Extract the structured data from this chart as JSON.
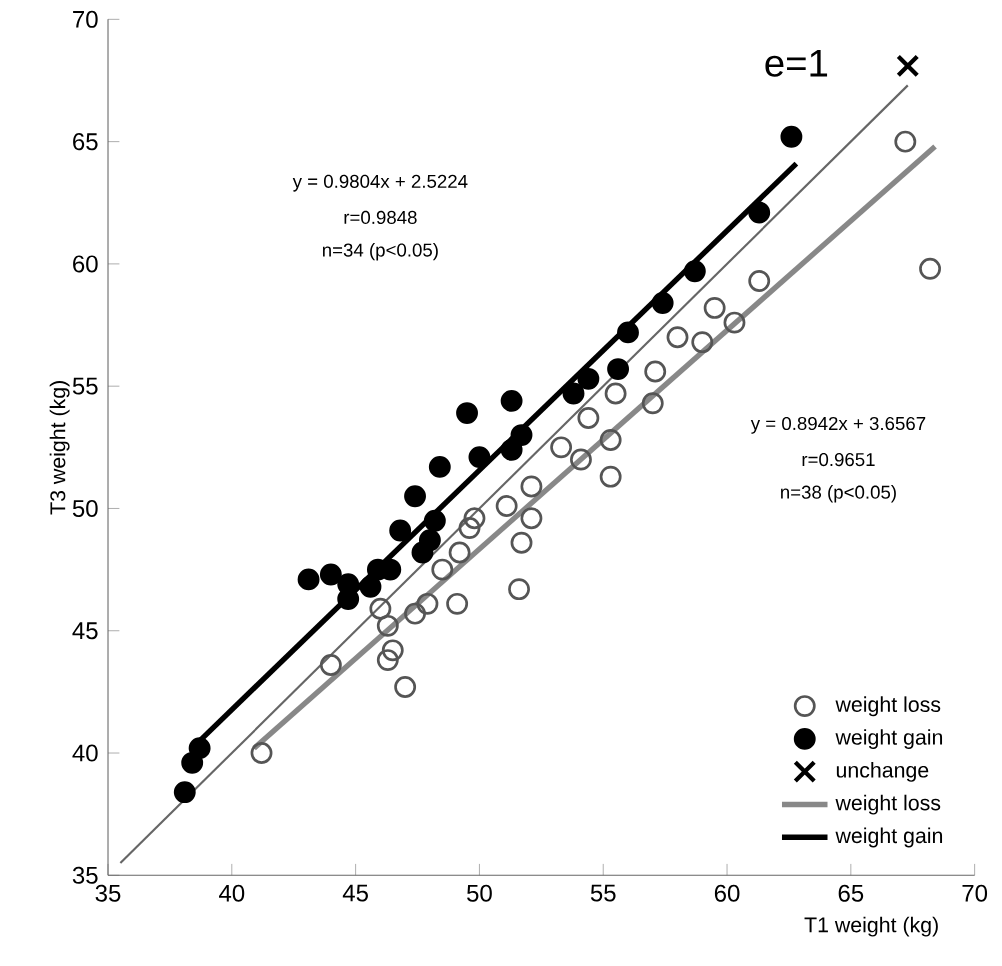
{
  "chart_data": {
    "type": "scatter",
    "xlabel": "T1 weight (kg)",
    "ylabel": "T3  weight (kg)",
    "xlim": [
      35,
      70
    ],
    "ylim": [
      35,
      70
    ],
    "xticks": [
      35,
      40,
      45,
      50,
      55,
      60,
      65,
      70
    ],
    "yticks": [
      35,
      40,
      45,
      50,
      55,
      60,
      65,
      70
    ],
    "grid": false,
    "legend": "bottom right",
    "annotations": [
      "e=1",
      "y = 0.9804x + 2.5224",
      "r=0.9848",
      "n=34 (p<0.05)",
      "y = 0.8942x + 3.6567",
      "r=0.9651",
      "n=38 (p<0.05)"
    ],
    "series": [
      {
        "name": "weight loss",
        "marker": "circle",
        "color": "#555555",
        "x": [
          41.2,
          44.0,
          46.0,
          46.3,
          46.5,
          46.3,
          47.0,
          47.4,
          47.9,
          48.5,
          49.1,
          49.2,
          49.6,
          49.8,
          51.1,
          51.7,
          51.6,
          52.1,
          52.1,
          53.3,
          54.1,
          55.3,
          55.3,
          54.4,
          55.5,
          57.0,
          57.1,
          58.0,
          59.0,
          59.5,
          60.3,
          61.3,
          67.2,
          68.2
        ],
        "values": [
          40.0,
          43.6,
          45.9,
          45.2,
          44.2,
          43.8,
          42.7,
          45.7,
          46.1,
          47.5,
          46.1,
          48.2,
          49.2,
          49.6,
          50.1,
          48.6,
          46.7,
          49.6,
          50.9,
          52.5,
          52.0,
          51.3,
          52.8,
          53.7,
          54.7,
          54.3,
          55.6,
          57.0,
          56.8,
          58.2,
          57.6,
          59.3,
          65.0,
          59.8
        ]
      },
      {
        "name": "weight gain",
        "marker": "circle",
        "color": "#000000",
        "x": [
          38.1,
          38.4,
          38.6,
          38.7,
          43.1,
          44.0,
          44.7,
          44.7,
          45.6,
          45.9,
          46.4,
          46.8,
          47.4,
          47.7,
          48.0,
          48.2,
          48.4,
          49.5,
          50.0,
          51.3,
          51.3,
          51.7,
          53.8,
          54.4,
          55.6,
          56.0,
          57.4,
          58.7,
          61.3,
          62.6
        ],
        "values": [
          38.4,
          39.6,
          null,
          40.2,
          47.1,
          47.3,
          46.9,
          46.3,
          46.8,
          47.5,
          47.5,
          49.1,
          50.5,
          48.2,
          48.7,
          49.5,
          51.7,
          53.9,
          52.1,
          54.4,
          52.4,
          53.0,
          54.7,
          55.3,
          55.7,
          57.2,
          58.4,
          59.7,
          62.1,
          65.2
        ]
      },
      {
        "name": "unchange",
        "marker": "cross",
        "color": "#000000",
        "x": [
          67.3
        ],
        "values": [
          68.1
        ]
      },
      {
        "name": "weight loss",
        "type": "line",
        "color": "#888888",
        "x": [
          40.9,
          68.4
        ],
        "values": [
          40.2,
          64.8
        ]
      },
      {
        "name": "weight gain",
        "type": "line",
        "color": "#000000",
        "x": [
          38.7,
          62.8
        ],
        "values": [
          40.5,
          64.1
        ]
      },
      {
        "type": "line",
        "color": "#666666",
        "x": [
          35.5,
          67.3
        ],
        "values": [
          35.5,
          67.3
        ]
      }
    ]
  }
}
